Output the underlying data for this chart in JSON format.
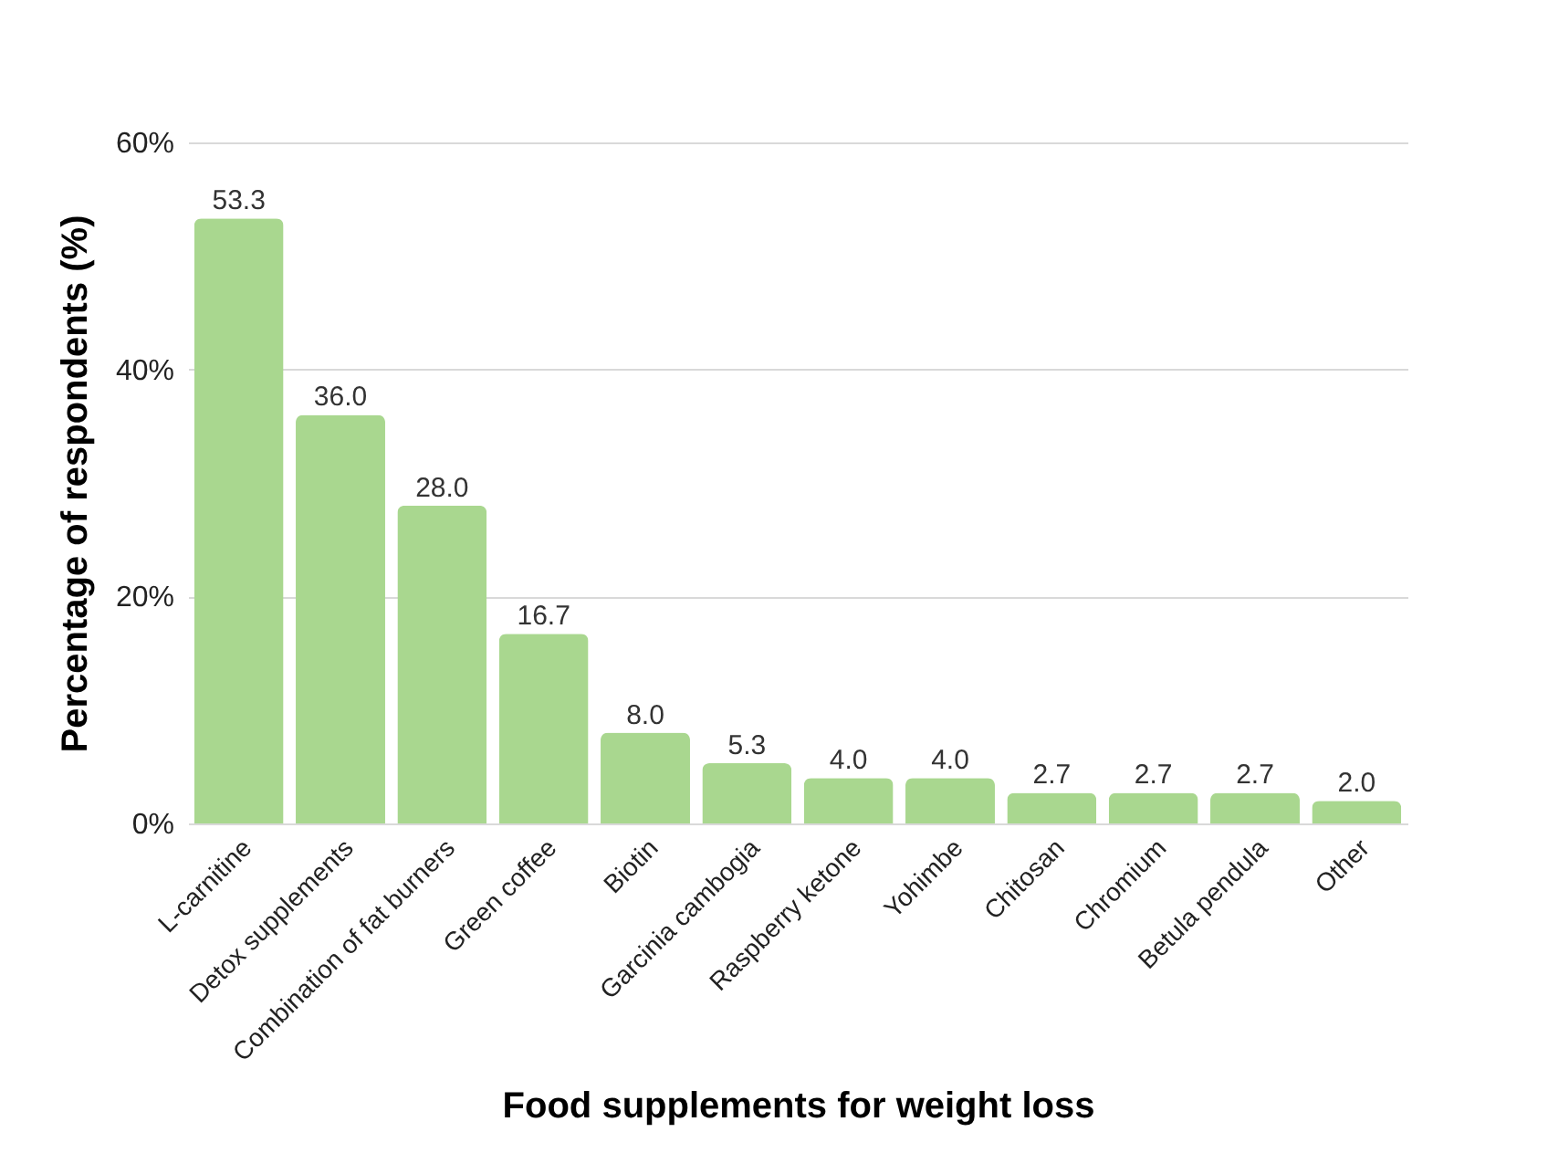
{
  "chart_data": {
    "type": "bar",
    "xlabel": "Food supplements for weight loss",
    "ylabel": "Percentage of respondents (%)",
    "categories": [
      "L-carnitine",
      "Detox supplements",
      "Combination of fat burners",
      "Green coffee",
      "Biotin",
      "Garcinia cambogia",
      "Raspberry ketone",
      "Yohimbe",
      "Chitosan",
      "Chromium",
      "Betula pendula",
      "Other"
    ],
    "values": [
      53.3,
      36.0,
      28.0,
      16.7,
      8.0,
      5.3,
      4.0,
      4.0,
      2.7,
      2.7,
      2.7,
      2.0
    ],
    "value_labels": [
      "53.3",
      "36.0",
      "28.0",
      "16.7",
      "8.0",
      "5.3",
      "4.0",
      "4.0",
      "2.7",
      "2.7",
      "2.7",
      "2.0"
    ],
    "color": "#a9d78f",
    "ylim": [
      0,
      60
    ],
    "yticks": [
      {
        "value": 0,
        "label": "0%"
      },
      {
        "value": 20,
        "label": "20%"
      },
      {
        "value": 40,
        "label": "40%"
      },
      {
        "value": 60,
        "label": "60%"
      }
    ],
    "grid": "y"
  }
}
